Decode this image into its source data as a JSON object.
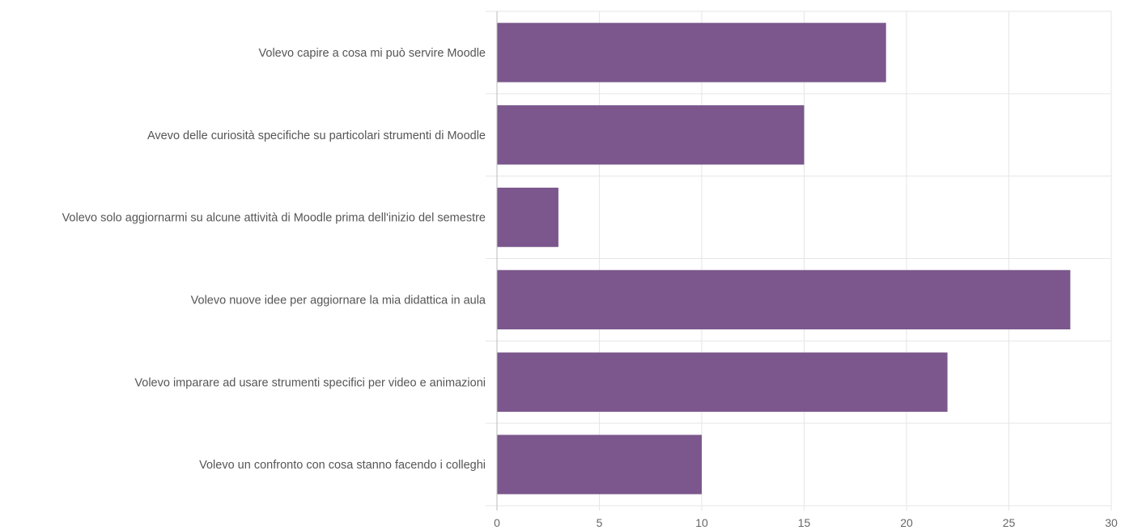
{
  "chart_data": {
    "type": "bar",
    "orientation": "horizontal",
    "categories": [
      "Volevo capire a cosa mi può servire Moodle",
      "Avevo delle curiosità specifiche su particolari strumenti di Moodle",
      "Volevo solo aggiornarmi su alcune attività di Moodle prima dell'inizio del semestre",
      "Volevo nuove idee per aggiornare la mia didattica in aula",
      "Volevo imparare ad usare strumenti specifici per video e animazioni",
      "Volevo un confronto con cosa stanno facendo i colleghi"
    ],
    "values": [
      19,
      15,
      3,
      28,
      22,
      10
    ],
    "xlim": [
      0,
      30
    ],
    "xticks": [
      "0",
      "5",
      "10",
      "15",
      "20",
      "25",
      "30"
    ],
    "grid": true,
    "legend": "none",
    "colors": {
      "bar": "#7b578d",
      "grid": "#e6e6e6",
      "axis": "#bbbbbb"
    }
  }
}
